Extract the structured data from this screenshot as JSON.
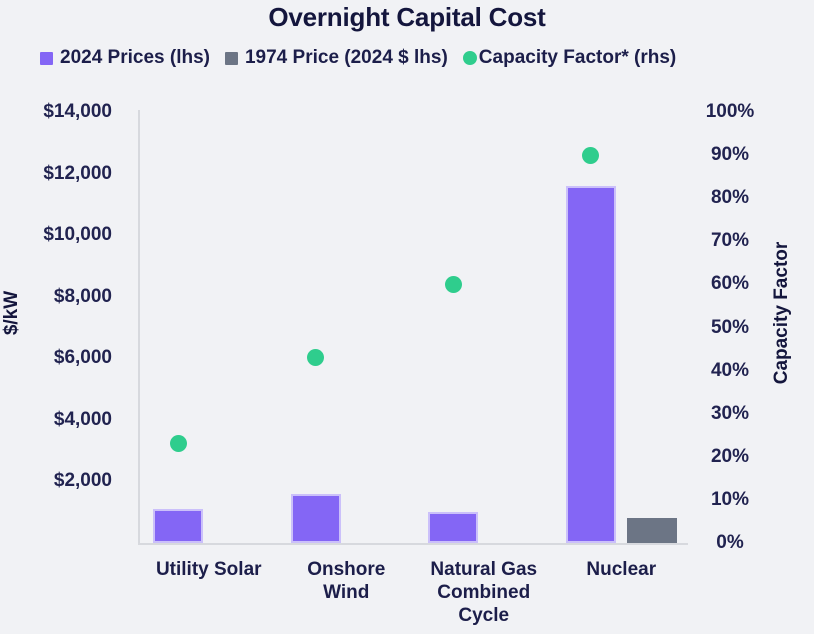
{
  "title": "Overnight Capital Cost",
  "colors": {
    "background": "#f1f2f5",
    "bar_2024": "#8466f5",
    "bar_2024_border": "#cbc0fa",
    "bar_1974": "#6c7585",
    "capacity_dot": "#2fcd8d",
    "text_dark": "#14163d",
    "axis_line": "#d7d9de"
  },
  "chart_data": {
    "type": "bar",
    "title": "Overnight Capital Cost",
    "grid": false,
    "legend_position": "top",
    "categories": [
      "Utility Solar",
      "Onshore Wind",
      "Natural Gas Combined Cycle",
      "Nuclear"
    ],
    "category_tick_lines": [
      [
        "Utility Solar"
      ],
      [
        "Onshore",
        "Wind"
      ],
      [
        "Natural Gas",
        "Combined",
        "Cycle"
      ],
      [
        "Nuclear"
      ]
    ],
    "series": [
      {
        "name": "2024 Prices (lhs)",
        "type": "bar",
        "axis": "left",
        "color": "#8466f5",
        "values": [
          1100,
          1600,
          1000,
          11600
        ]
      },
      {
        "name": "1974 Price (2024 $ lhs)",
        "type": "bar",
        "axis": "left",
        "color": "#6c7585",
        "values": [
          null,
          null,
          null,
          800
        ]
      },
      {
        "name": "Capacity Factor* (rhs)",
        "type": "scatter",
        "axis": "right",
        "color": "#2fcd8d",
        "values": [
          23,
          43,
          60,
          90
        ]
      }
    ],
    "left_axis": {
      "label": "$/kW",
      "min": 0,
      "max": 14000,
      "ticks": [
        {
          "value": 2000,
          "label": "$2,000"
        },
        {
          "value": 4000,
          "label": "$4,000"
        },
        {
          "value": 6000,
          "label": "$6,000"
        },
        {
          "value": 8000,
          "label": "$8,000"
        },
        {
          "value": 10000,
          "label": "$10,000"
        },
        {
          "value": 12000,
          "label": "$12,000"
        },
        {
          "value": 14000,
          "label": "$14,000"
        }
      ]
    },
    "right_axis": {
      "label": "Capacity Factor",
      "min": 0,
      "max": 100,
      "ticks": [
        {
          "value": 0,
          "label": "0%"
        },
        {
          "value": 10,
          "label": "10%"
        },
        {
          "value": 20,
          "label": "20%"
        },
        {
          "value": 30,
          "label": "30%"
        },
        {
          "value": 40,
          "label": "40%"
        },
        {
          "value": 50,
          "label": "50%"
        },
        {
          "value": 60,
          "label": "60%"
        },
        {
          "value": 70,
          "label": "70%"
        },
        {
          "value": 80,
          "label": "80%"
        },
        {
          "value": 90,
          "label": "90%"
        },
        {
          "value": 100,
          "label": "100%"
        }
      ]
    }
  }
}
